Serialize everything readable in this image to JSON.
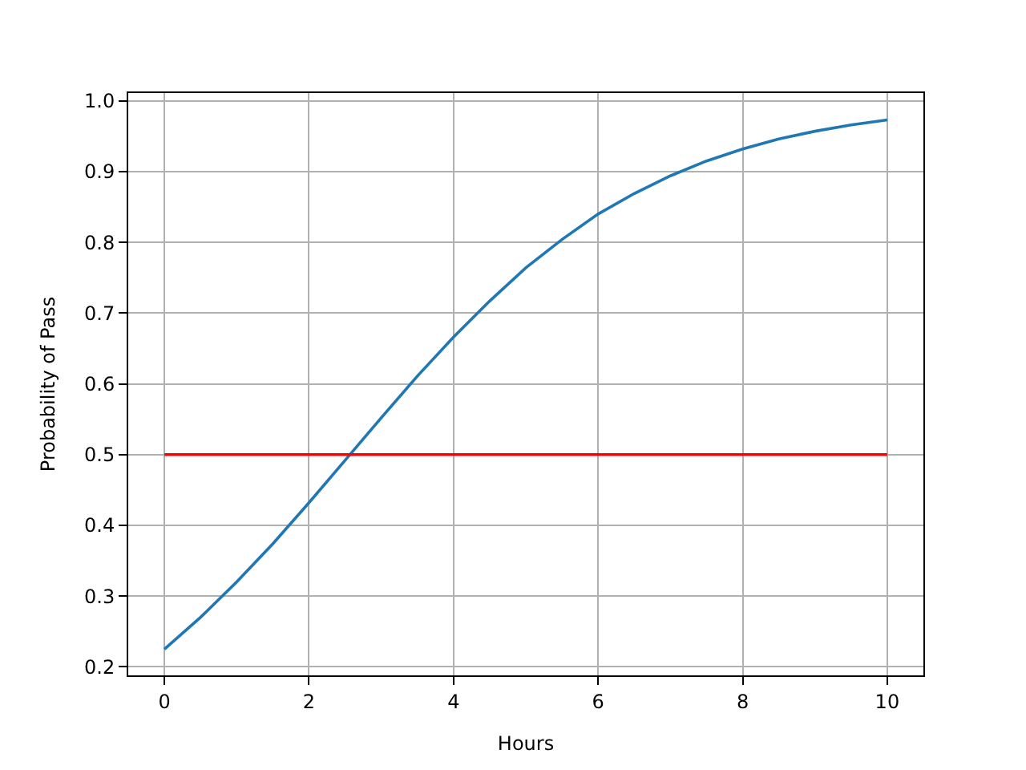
{
  "chart_data": {
    "type": "line",
    "xlabel": "Hours",
    "ylabel": "Probability of Pass",
    "series": [
      {
        "color": "#1f77b4",
        "x": [
          0,
          0.5,
          1,
          1.5,
          2,
          2.5,
          3,
          3.5,
          4,
          4.5,
          5,
          5.5,
          6,
          6.5,
          7,
          7.5,
          8,
          8.5,
          9,
          9.5,
          10
        ],
        "values": [
          0.225,
          0.27,
          0.32,
          0.374,
          0.432,
          0.492,
          0.552,
          0.611,
          0.666,
          0.717,
          0.764,
          0.804,
          0.84,
          0.869,
          0.894,
          0.915,
          0.932,
          0.946,
          0.957,
          0.966,
          0.973
        ]
      },
      {
        "color": "#ff0000",
        "x": [
          0,
          10
        ],
        "values": [
          0.5,
          0.5
        ]
      }
    ],
    "xlim": [
      -0.5,
      10.5
    ],
    "xticks": [
      0,
      2,
      4,
      6,
      8,
      10
    ],
    "ylim": [
      0.188,
      1.011
    ],
    "yticks": [
      0.2,
      0.3,
      0.4,
      0.5,
      0.6,
      0.7,
      0.8,
      0.9,
      {
        "value": 1,
        "label": "1.0"
      }
    ],
    "grid": true,
    "marker": "none",
    "line_style": "solid"
  }
}
